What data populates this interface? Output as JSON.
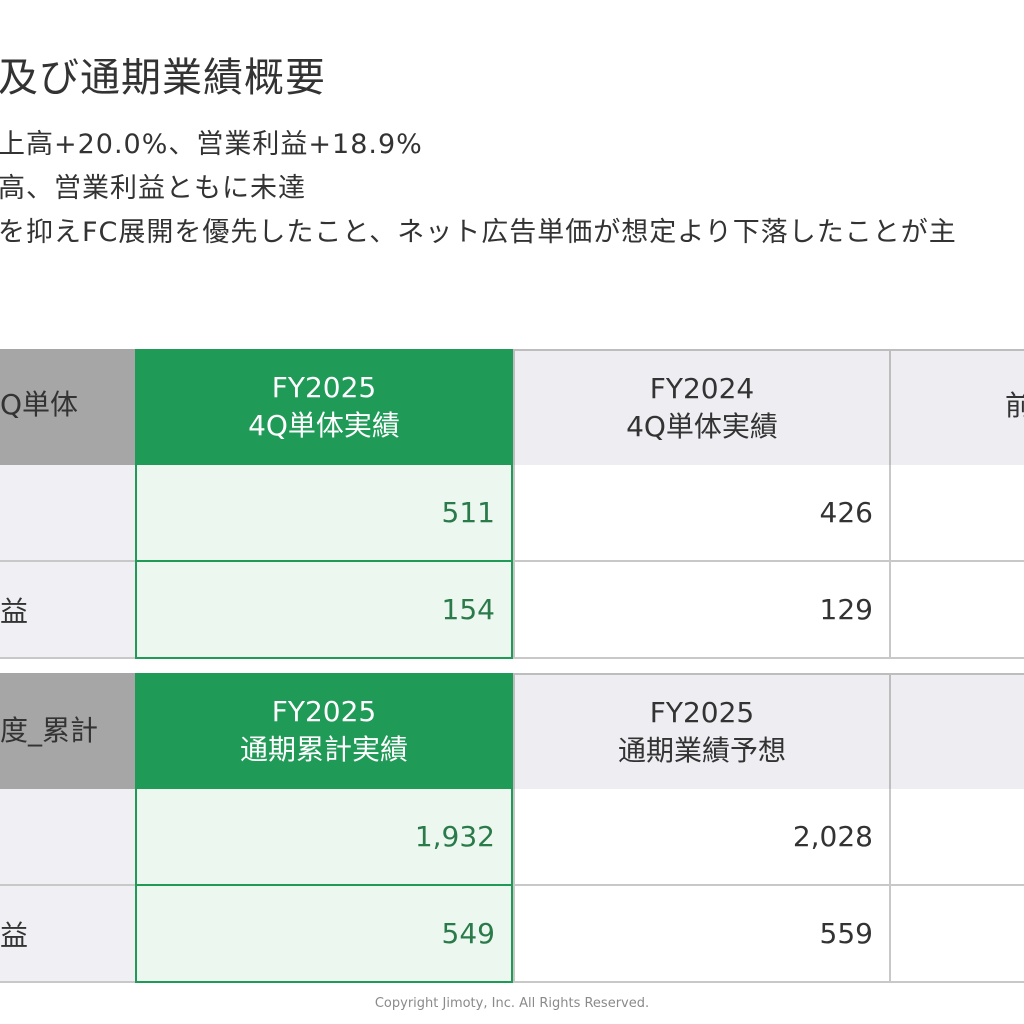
{
  "header": {
    "title": "及び通期業績概要",
    "bullets": [
      "上高+20.0%、営業利益+18.9%",
      "高、営業利益ともに未達",
      "を抑えFC展開を優先したこと、ネット広告単価が想定より下落したことが主"
    ]
  },
  "table_q4": {
    "label_header": "Q単体",
    "col1_header": [
      "FY2025",
      "4Q単体実績"
    ],
    "col2_header": [
      "FY2024",
      "4Q単体実績"
    ],
    "col3_header": "前",
    "rows": [
      {
        "label": "",
        "col1": "511",
        "col2": "426"
      },
      {
        "label": "益",
        "col1": "154",
        "col2": "129"
      }
    ]
  },
  "table_full": {
    "label_header": "度_累計",
    "col1_header": [
      "FY2025",
      "通期累計実績"
    ],
    "col2_header": [
      "FY2025",
      "通期業績予想"
    ],
    "col3_header": "",
    "rows": [
      {
        "label": "",
        "col1": "1,932",
        "col2": "2,028"
      },
      {
        "label": "益",
        "col1": "549",
        "col2": "559"
      }
    ]
  },
  "footer": {
    "copyright": "Copyright Jimoty, Inc. All Rights Reserved."
  },
  "colors": {
    "accent_green": "#1f9a57",
    "light_green": "#ebf7ef",
    "header_gray": "#a6a6a6"
  }
}
